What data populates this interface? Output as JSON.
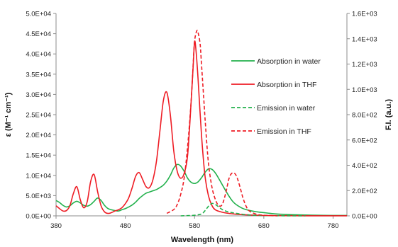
{
  "chart_data": {
    "type": "line",
    "xlabel": "Wavelength (nm)",
    "ylabel_left": "ε (M⁻¹ cm⁻¹)",
    "ylabel_right": "F.I. (a.u.)",
    "xlim": [
      380,
      800
    ],
    "ylim_left": [
      0,
      50000
    ],
    "ylim_right": [
      0,
      1600
    ],
    "x_ticks": [
      "380",
      "480",
      "580",
      "680",
      "780"
    ],
    "x_tick_values": [
      380,
      480,
      580,
      680,
      780
    ],
    "y_ticks_left": [
      "0.0E+00",
      "5.0E+03",
      "1.0E+04",
      "1.5E+04",
      "2.0E+04",
      "2.5E+04",
      "3.0E+04",
      "3.5E+04",
      "4.0E+04",
      "4.5E+04",
      "5.0E+04"
    ],
    "y_tick_values_left": [
      0,
      5000,
      10000,
      15000,
      20000,
      25000,
      30000,
      35000,
      40000,
      45000,
      50000
    ],
    "y_ticks_right": [
      "0.0E+00",
      "2.0E+02",
      "4.0E+02",
      "6.0E+02",
      "8.0E+02",
      "1.0E+03",
      "1.2E+03",
      "1.4E+03",
      "1.6E+03"
    ],
    "y_tick_values_right": [
      0,
      200,
      400,
      600,
      800,
      1000,
      1200,
      1400,
      1600
    ],
    "legend_position": "right",
    "series": [
      {
        "name": "Absorption in water",
        "axis": "left",
        "color": "#22b14c",
        "dash": "solid",
        "x": [
          380,
          385,
          390,
          395,
          400,
          405,
          410,
          415,
          420,
          425,
          430,
          435,
          440,
          445,
          450,
          455,
          460,
          465,
          470,
          475,
          480,
          485,
          490,
          495,
          500,
          505,
          510,
          515,
          520,
          525,
          530,
          535,
          540,
          545,
          550,
          555,
          560,
          565,
          570,
          575,
          580,
          585,
          590,
          595,
          600,
          605,
          610,
          615,
          620,
          625,
          630,
          635,
          640,
          650,
          660,
          670,
          680,
          690,
          700,
          720,
          740,
          760,
          780,
          800
        ],
        "y": [
          3800,
          3300,
          2600,
          2200,
          2500,
          3200,
          3600,
          3200,
          2600,
          2400,
          2800,
          3600,
          4400,
          3800,
          2600,
          1800,
          1500,
          1300,
          1200,
          1500,
          1800,
          2200,
          2700,
          3400,
          4300,
          5000,
          5600,
          5900,
          6200,
          6500,
          7000,
          7600,
          8600,
          10000,
          11800,
          12700,
          12300,
          11000,
          9300,
          8300,
          8000,
          8400,
          9400,
          10700,
          11600,
          11500,
          10600,
          9200,
          7700,
          6200,
          4800,
          3600,
          2800,
          1800,
          1300,
          1000,
          800,
          600,
          450,
          300,
          200,
          150,
          100,
          100
        ]
      },
      {
        "name": "Absorption in THF",
        "axis": "left",
        "color": "#ee1c24",
        "dash": "solid",
        "x": [
          380,
          385,
          390,
          395,
          400,
          405,
          410,
          415,
          420,
          425,
          430,
          435,
          440,
          445,
          450,
          455,
          460,
          465,
          470,
          475,
          480,
          485,
          490,
          495,
          500,
          505,
          510,
          515,
          520,
          525,
          530,
          535,
          540,
          545,
          550,
          555,
          560,
          565,
          570,
          575,
          578,
          580,
          582,
          585,
          590,
          595,
          600,
          605,
          610,
          620,
          630,
          640,
          660,
          680,
          700,
          740,
          780,
          800
        ],
        "y": [
          2500,
          1800,
          1200,
          1300,
          2500,
          5500,
          7200,
          4000,
          2000,
          3500,
          8500,
          10200,
          6000,
          2500,
          1000,
          600,
          800,
          1200,
          1500,
          2000,
          3000,
          4500,
          7000,
          9800,
          10700,
          9000,
          7200,
          7000,
          9000,
          13500,
          21000,
          28500,
          30500,
          25000,
          16000,
          11000,
          9300,
          10500,
          15000,
          28000,
          37000,
          43000,
          41000,
          34000,
          20000,
          10000,
          5000,
          2600,
          1500,
          900,
          600,
          400,
          200,
          100,
          50,
          20,
          10,
          10
        ]
      },
      {
        "name": "Emission in water",
        "axis": "right",
        "color": "#22b14c",
        "dash": "dashed",
        "x": [
          560,
          570,
          580,
          590,
          595,
          600,
          605,
          610,
          615,
          620,
          625,
          630,
          640,
          650,
          660,
          670,
          680,
          700,
          720,
          740
        ],
        "y": [
          0,
          2,
          5,
          15,
          40,
          75,
          98,
          90,
          70,
          50,
          38,
          30,
          20,
          12,
          7,
          4,
          2,
          1,
          0,
          0
        ]
      },
      {
        "name": "Emission in THF",
        "axis": "right",
        "color": "#ee1c24",
        "dash": "dashed",
        "x": [
          540,
          550,
          555,
          560,
          565,
          570,
          575,
          578,
          580,
          583,
          585,
          588,
          590,
          593,
          596,
          600,
          605,
          610,
          615,
          620,
          625,
          630,
          635,
          640,
          645,
          650,
          655,
          660,
          670,
          680,
          700
        ],
        "y": [
          20,
          50,
          90,
          170,
          300,
          550,
          900,
          1200,
          1380,
          1460,
          1450,
          1360,
          1200,
          950,
          700,
          420,
          230,
          130,
          80,
          90,
          180,
          300,
          340,
          320,
          240,
          140,
          70,
          35,
          12,
          5,
          0
        ]
      }
    ]
  }
}
